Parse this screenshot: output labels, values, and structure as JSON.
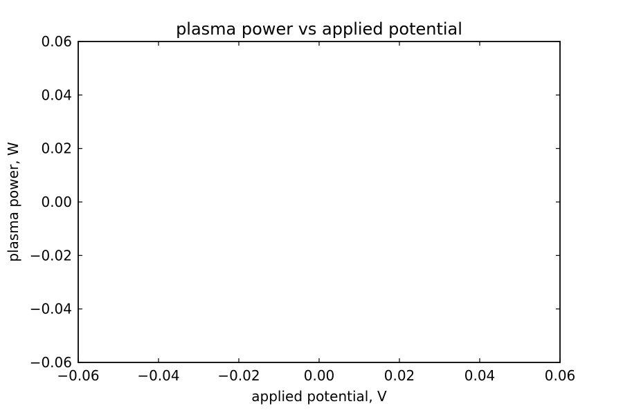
{
  "chart_data": {
    "type": "line",
    "title": "plasma power vs applied potential",
    "xlabel": "applied potential, V",
    "ylabel": "plasma power, W",
    "xlim": [
      -0.06,
      0.06
    ],
    "ylim": [
      -0.06,
      0.06
    ],
    "x_ticks": [
      -0.06,
      -0.04,
      -0.02,
      0.0,
      0.02,
      0.04,
      0.06
    ],
    "y_ticks": [
      -0.06,
      -0.04,
      -0.02,
      0.0,
      0.02,
      0.04,
      0.06
    ],
    "x_tick_labels": [
      "−0.06",
      "−0.04",
      "−0.02",
      "0.00",
      "0.02",
      "0.04",
      "0.06"
    ],
    "y_tick_labels": [
      "−0.06",
      "−0.04",
      "−0.02",
      "0.00",
      "0.02",
      "0.04",
      "0.06"
    ],
    "grid": false,
    "series": []
  },
  "colors": {
    "axes": "#000000",
    "background": "#ffffff"
  }
}
